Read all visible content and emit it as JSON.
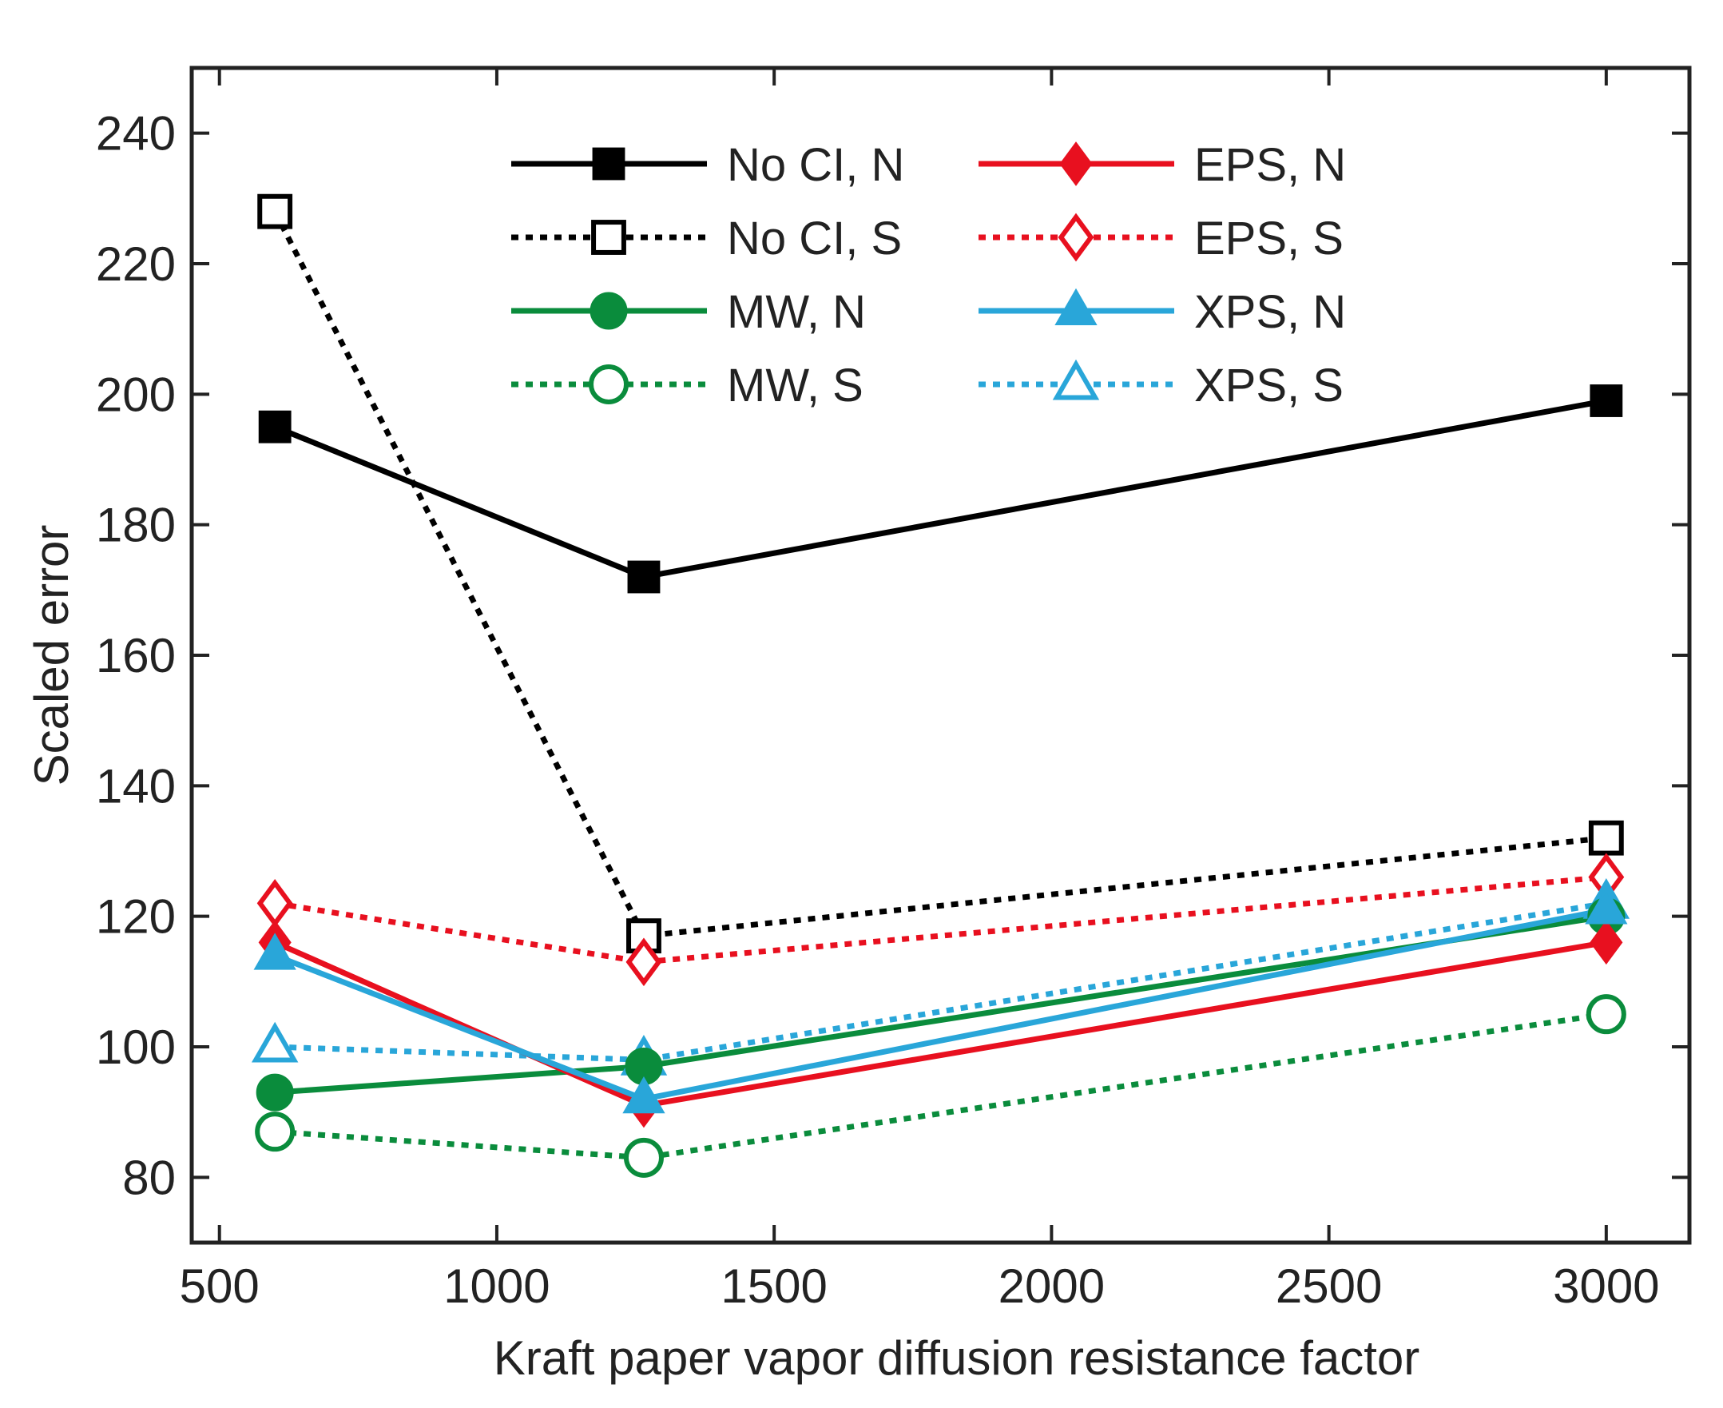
{
  "chart_data": {
    "type": "line",
    "title": "",
    "xlabel": "Kraft paper vapor diffusion resistance factor",
    "ylabel": "Scaled error",
    "xlim": [
      450,
      3150
    ],
    "ylim": [
      70,
      250
    ],
    "xticks": [
      500,
      1000,
      1500,
      2000,
      2500,
      3000
    ],
    "yticks": [
      80,
      100,
      120,
      140,
      160,
      180,
      200,
      220,
      240
    ],
    "x": [
      600,
      1265,
      3000
    ],
    "grid": false,
    "legend_position": "top-center",
    "series": [
      {
        "name": "No CI, N",
        "values": [
          195,
          172,
          199
        ],
        "color": "#000000",
        "style": "solid",
        "marker": "square",
        "filled": true
      },
      {
        "name": "No CI, S",
        "values": [
          228,
          117,
          132
        ],
        "color": "#000000",
        "style": "dotted",
        "marker": "square",
        "filled": false
      },
      {
        "name": "MW, N",
        "values": [
          93,
          97,
          120
        ],
        "color": "#0a8c3c",
        "style": "solid",
        "marker": "circle",
        "filled": true
      },
      {
        "name": "MW, S",
        "values": [
          87,
          83,
          105
        ],
        "color": "#0a8c3c",
        "style": "dotted",
        "marker": "circle",
        "filled": false
      },
      {
        "name": "EPS, N",
        "values": [
          116,
          91,
          116
        ],
        "color": "#e8101f",
        "style": "solid",
        "marker": "diamond",
        "filled": true
      },
      {
        "name": "EPS, S",
        "values": [
          122,
          113,
          126
        ],
        "color": "#e8101f",
        "style": "dotted",
        "marker": "diamond",
        "filled": false
      },
      {
        "name": "XPS, N",
        "values": [
          114,
          92,
          121
        ],
        "color": "#29a6d9",
        "style": "solid",
        "marker": "triangle",
        "filled": true
      },
      {
        "name": "XPS, S",
        "values": [
          100,
          98,
          122
        ],
        "color": "#29a6d9",
        "style": "dotted",
        "marker": "triangle",
        "filled": false
      }
    ]
  }
}
